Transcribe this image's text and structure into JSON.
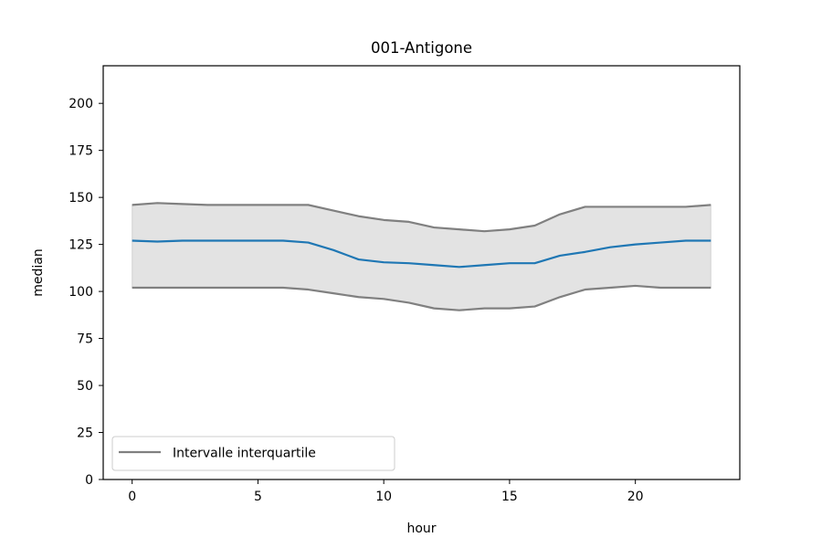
{
  "chart_data": {
    "type": "line",
    "title": "001-Antigone",
    "xlabel": "hour",
    "ylabel": "median",
    "xlim": [
      -1.15,
      24.15
    ],
    "ylim": [
      0,
      220
    ],
    "x_ticks": [
      0,
      5,
      10,
      15,
      20
    ],
    "y_ticks": [
      0,
      25,
      50,
      75,
      100,
      125,
      150,
      175,
      200
    ],
    "grid": false,
    "legend_position": "lower-left",
    "x": [
      0,
      1,
      2,
      3,
      4,
      5,
      6,
      7,
      8,
      9,
      10,
      11,
      12,
      13,
      14,
      15,
      16,
      17,
      18,
      19,
      20,
      21,
      22,
      23
    ],
    "series": [
      {
        "role": "median",
        "color": "#1f77b4",
        "values": [
          127,
          126.5,
          127,
          127,
          127,
          127,
          127,
          126,
          122,
          117,
          115.5,
          115,
          114,
          113,
          114,
          115,
          115,
          119,
          121,
          123.5,
          125,
          126,
          127,
          127
        ]
      },
      {
        "role": "upper-quartile",
        "color": "#808080",
        "values": [
          146,
          147,
          146.5,
          146,
          146,
          146,
          146,
          146,
          143,
          140,
          138,
          137,
          134,
          133,
          132,
          133,
          135,
          141,
          145,
          145,
          145,
          145,
          145,
          146
        ]
      },
      {
        "role": "lower-quartile",
        "color": "#808080",
        "values": [
          102,
          102,
          102,
          102,
          102,
          102,
          102,
          101,
          99,
          97,
          96,
          94,
          91,
          90,
          91,
          91,
          92,
          97,
          101,
          102,
          103,
          102,
          102,
          102
        ]
      }
    ],
    "band_color": "#808080",
    "legend": [
      {
        "label": "Intervalle interquartile",
        "color": "#808080"
      }
    ]
  }
}
